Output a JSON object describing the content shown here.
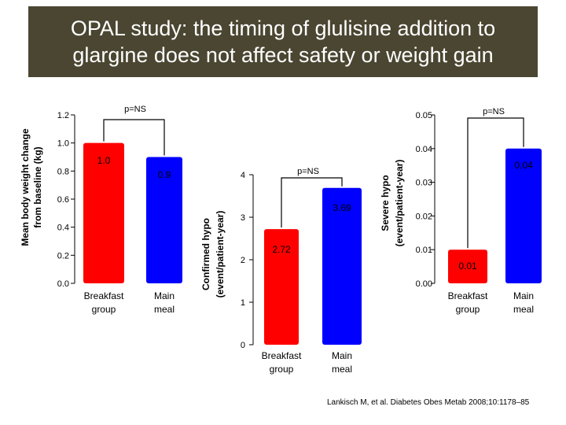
{
  "slide": {
    "title": "OPAL study: the timing of glulisine addition to glargine does not affect safety or weight gain",
    "citation": "Lankisch M, et al. Diabetes Obes Metab 2008;10:1178–85"
  },
  "colors": {
    "title_bg": "#4a4631",
    "breakfast": "#ff0000",
    "main": "#0000ff"
  },
  "chart_data": [
    {
      "type": "bar",
      "title": "",
      "xlabel": "",
      "ylabel": "Mean body weight change from baseline (kg)",
      "ylabel_lines": [
        "Mean body weight change",
        "from baseline (kg)"
      ],
      "categories": [
        "Breakfast group",
        "Main meal"
      ],
      "category_lines": [
        [
          "Breakfast",
          "group"
        ],
        [
          "Main",
          "meal"
        ]
      ],
      "values": [
        1.0,
        0.9
      ],
      "value_labels": [
        "1.0",
        "0.9"
      ],
      "ylim": [
        0,
        1.2
      ],
      "yticks": [
        "0.0",
        "0.2",
        "0.4",
        "0.6",
        "0.8",
        "1.0",
        "1.2"
      ],
      "annotation": "p=NS"
    },
    {
      "type": "bar",
      "title": "",
      "xlabel": "",
      "ylabel": "Confirmed hypo (event/patient-year)",
      "ylabel_lines": [
        "Confirmed hypo",
        "(event/patient-year)"
      ],
      "categories": [
        "Breakfast group",
        "Main meal"
      ],
      "category_lines": [
        [
          "Breakfast",
          "group"
        ],
        [
          "Main",
          "meal"
        ]
      ],
      "values": [
        2.72,
        3.69
      ],
      "value_labels": [
        "2.72",
        "3.69"
      ],
      "ylim": [
        0,
        4
      ],
      "yticks": [
        "0",
        "1",
        "2",
        "3",
        "4"
      ],
      "annotation": "p=NS"
    },
    {
      "type": "bar",
      "title": "",
      "xlabel": "",
      "ylabel": "Severe hypo (event/patient-year)",
      "ylabel_lines": [
        "Severe hypo",
        "(event/patient-year)"
      ],
      "categories": [
        "Breakfast group",
        "Main meal"
      ],
      "category_lines": [
        [
          "Breakfast",
          "group"
        ],
        [
          "Main",
          "meal"
        ]
      ],
      "values": [
        0.01,
        0.04
      ],
      "value_labels": [
        "0.01",
        "0.04"
      ],
      "ylim": [
        0,
        0.05
      ],
      "yticks": [
        "0.00",
        "0.01",
        "0.02",
        "0.03",
        "0.04",
        "0.05"
      ],
      "annotation": "p=NS"
    }
  ]
}
